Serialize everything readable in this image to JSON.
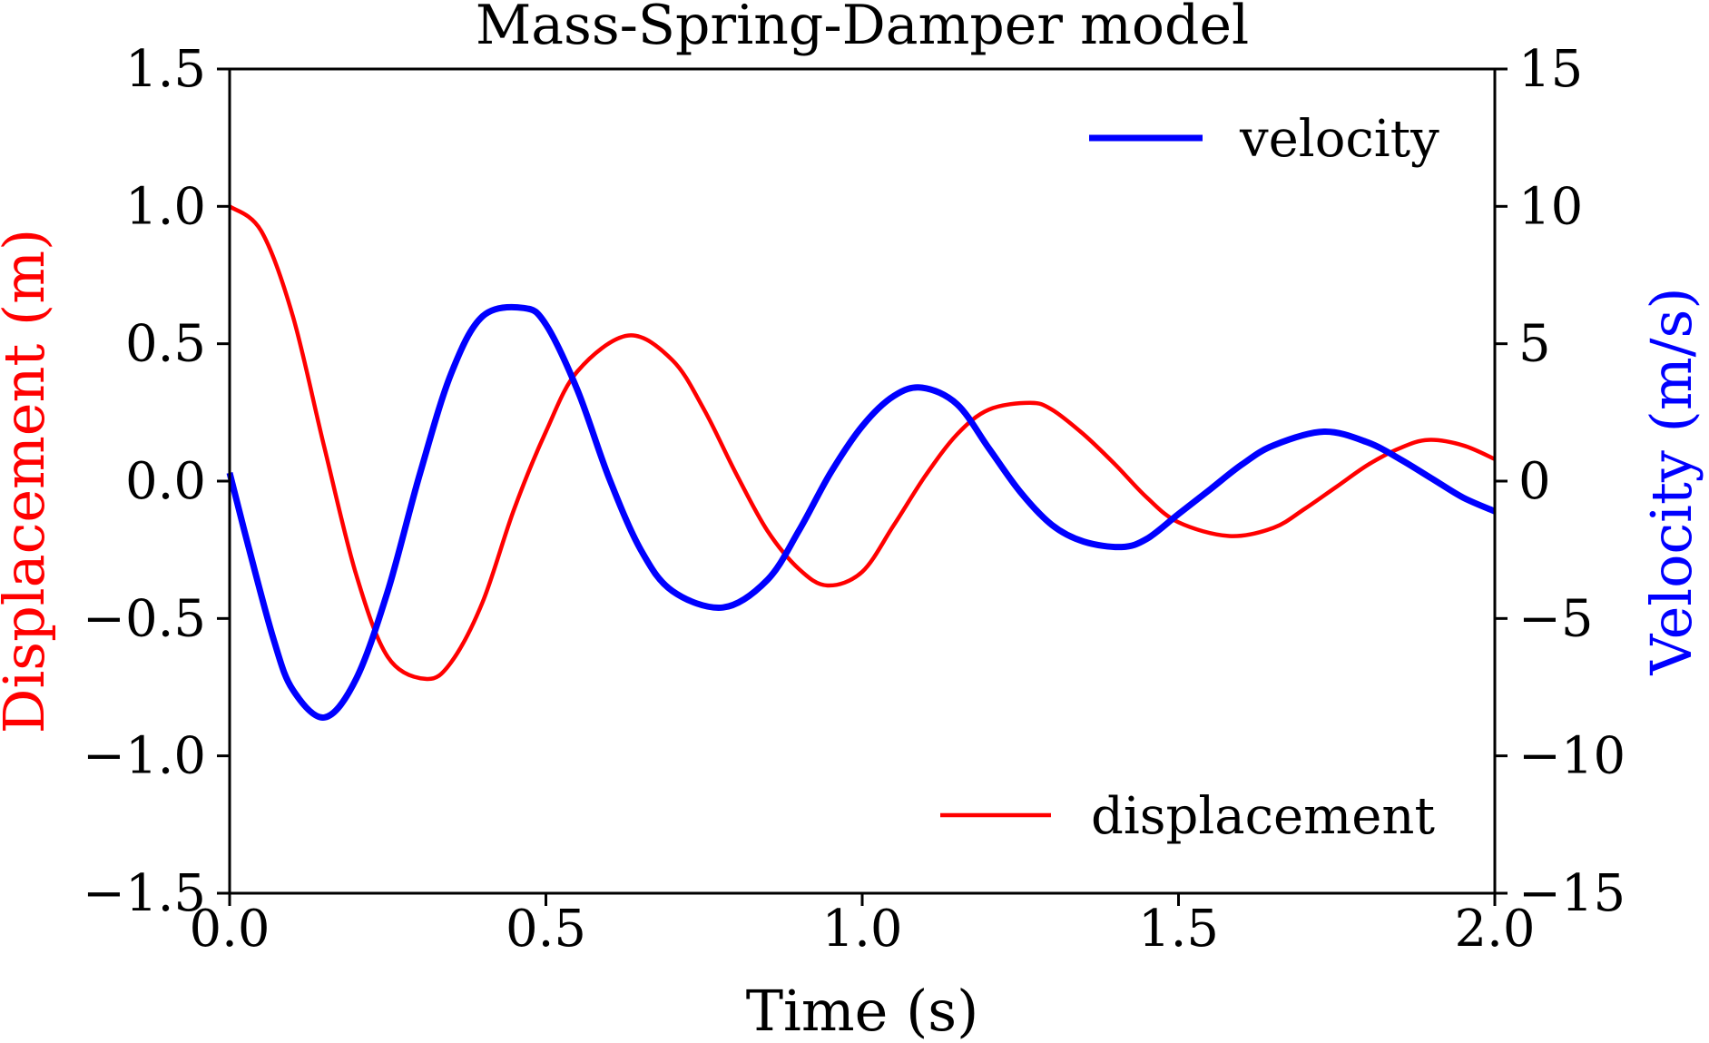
{
  "chart_data": {
    "type": "line",
    "title": "Mass-Spring-Damper model",
    "xlabel": "Time (s)",
    "ylabel_left": "Displacement (m)",
    "ylabel_right": "Velocity (m/s)",
    "xlim": [
      0,
      2
    ],
    "ylim_left": [
      -1.5,
      1.5
    ],
    "ylim_right": [
      -15,
      15
    ],
    "x_ticks": [
      "0.0",
      "0.5",
      "1.0",
      "1.5",
      "2.0"
    ],
    "x_tick_values": [
      0,
      0.5,
      1.0,
      1.5,
      2.0
    ],
    "y_left_ticks": [
      "1.5",
      "1.0",
      "0.5",
      "0.0",
      "−0.5",
      "−1.0",
      "−1.5"
    ],
    "y_left_tick_values": [
      1.5,
      1.0,
      0.5,
      0.0,
      -0.5,
      -1.0,
      -1.5
    ],
    "y_right_ticks": [
      "15",
      "10",
      "5",
      "0",
      "−5",
      "−10",
      "−15"
    ],
    "y_right_tick_values": [
      15,
      10,
      5,
      0,
      -5,
      -10,
      -15
    ],
    "grid": false,
    "colors": {
      "displacement": "#ff0000",
      "velocity": "#0000ff",
      "axes": "#000000"
    },
    "series": [
      {
        "name": "displacement",
        "axis": "left",
        "x": [
          0.0,
          0.05,
          0.1,
          0.15,
          0.2,
          0.25,
          0.31,
          0.35,
          0.4,
          0.45,
          0.5,
          0.55,
          0.63,
          0.7,
          0.75,
          0.8,
          0.85,
          0.9,
          0.945,
          1.0,
          1.05,
          1.1,
          1.15,
          1.2,
          1.265,
          1.3,
          1.35,
          1.4,
          1.45,
          1.5,
          1.58,
          1.65,
          1.7,
          1.75,
          1.8,
          1.85,
          1.895,
          1.95,
          2.0
        ],
        "values": [
          1.0,
          0.91,
          0.6,
          0.12,
          -0.34,
          -0.64,
          -0.72,
          -0.66,
          -0.44,
          -0.1,
          0.18,
          0.4,
          0.53,
          0.44,
          0.26,
          0.03,
          -0.18,
          -0.32,
          -0.38,
          -0.33,
          -0.16,
          0.02,
          0.17,
          0.26,
          0.285,
          0.26,
          0.17,
          0.06,
          -0.06,
          -0.15,
          -0.2,
          -0.17,
          -0.1,
          -0.02,
          0.06,
          0.12,
          0.15,
          0.13,
          0.08
        ]
      },
      {
        "name": "velocity",
        "axis": "right",
        "x": [
          0.0,
          0.03,
          0.07,
          0.1,
          0.15,
          0.2,
          0.25,
          0.3,
          0.35,
          0.4,
          0.465,
          0.5,
          0.55,
          0.6,
          0.65,
          0.7,
          0.78,
          0.85,
          0.9,
          0.95,
          1.0,
          1.05,
          1.095,
          1.15,
          1.2,
          1.25,
          1.3,
          1.35,
          1.41,
          1.45,
          1.5,
          1.55,
          1.6,
          1.65,
          1.73,
          1.8,
          1.85,
          1.9,
          1.95,
          2.0
        ],
        "values": [
          0.3,
          -2.4,
          -5.8,
          -7.6,
          -8.6,
          -7.2,
          -4.0,
          0.2,
          3.9,
          6.0,
          6.3,
          5.7,
          3.3,
          0.1,
          -2.5,
          -4.0,
          -4.6,
          -3.6,
          -1.8,
          0.3,
          2.0,
          3.1,
          3.4,
          2.8,
          1.2,
          -0.4,
          -1.6,
          -2.2,
          -2.4,
          -2.1,
          -1.2,
          -0.3,
          0.6,
          1.3,
          1.8,
          1.4,
          0.8,
          0.1,
          -0.6,
          -1.1
        ]
      }
    ],
    "legends": [
      {
        "label": "velocity",
        "series": "velocity",
        "placement": "upper right"
      },
      {
        "label": "displacement",
        "series": "displacement",
        "placement": "lower right"
      }
    ]
  }
}
